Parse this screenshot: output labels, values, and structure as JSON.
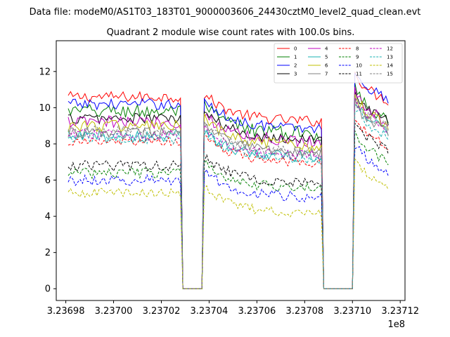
{
  "figure": {
    "supertitle": "Data file: modeM0/AS1T03_183T01_9000003606_24430cztM0_level2_quad_clean.evt"
  },
  "chart_data": {
    "type": "line",
    "title": "Quadrant 2 module wise count rates with 100.0s bins.",
    "xlabel": "",
    "ylabel": "",
    "x_offset_label": "1e8",
    "xlim": [
      3.236976,
      3.237122
    ],
    "ylim": [
      -0.65,
      13.7
    ],
    "x_ticks": [
      3.23698,
      3.237,
      3.23702,
      3.23704,
      3.23706,
      3.23708,
      3.2371,
      3.23712
    ],
    "x_tick_labels": [
      "3.23698",
      "3.23700",
      "3.23702",
      "3.23704",
      "3.23706",
      "3.23708",
      "3.23710",
      "3.23712"
    ],
    "y_ticks": [
      0,
      2,
      4,
      6,
      8,
      10,
      12
    ],
    "y_tick_labels": [
      "0",
      "2",
      "4",
      "6",
      "8",
      "10",
      "12"
    ],
    "grid": false,
    "legend_position": "top-right",
    "segments": [
      {
        "x_start": 3.236981,
        "x_end": 3.237028,
        "amp": 0.6,
        "decay": 0.0
      },
      {
        "x_start": 3.237038,
        "x_end": 3.237087,
        "amp": 1.5,
        "decay": 4.0
      },
      {
        "x_start": 3.237101,
        "x_end": 3.237115,
        "amp": 1.9,
        "decay": 1.6
      }
    ],
    "gap_x": [
      3.237029,
      3.237031,
      3.237034,
      3.237037,
      3.237088,
      3.237091,
      3.237094,
      3.237097,
      3.2371
    ],
    "series": [
      {
        "name": "0",
        "color": "#ff0000",
        "dash": "solid",
        "level": 10.0,
        "levels": [
          10.0,
          9.6,
          10.5
        ],
        "noise": 0.3
      },
      {
        "name": "1",
        "color": "#008000",
        "dash": "solid",
        "level": 9.2,
        "levels": [
          9.2,
          8.9,
          9.6
        ],
        "noise": 0.4
      },
      {
        "name": "2",
        "color": "#0000ff",
        "dash": "solid",
        "level": 9.6,
        "levels": [
          9.6,
          9.2,
          10.6
        ],
        "noise": 0.3
      },
      {
        "name": "3",
        "color": "#000000",
        "dash": "solid",
        "level": 8.8,
        "levels": [
          8.8,
          8.6,
          9.4
        ],
        "noise": 0.3
      },
      {
        "name": "4",
        "color": "#bf00bf",
        "dash": "solid",
        "level": 8.6,
        "levels": [
          8.6,
          8.5,
          9.4
        ],
        "noise": 0.35
      },
      {
        "name": "5",
        "color": "#1ab3b3",
        "dash": "solid",
        "level": 7.8,
        "levels": [
          7.8,
          7.6,
          8.9
        ],
        "noise": 0.35
      },
      {
        "name": "6",
        "color": "#bfbf00",
        "dash": "solid",
        "level": 8.4,
        "levels": [
          8.4,
          8.2,
          9.2
        ],
        "noise": 0.35
      },
      {
        "name": "7",
        "color": "#808080",
        "dash": "solid",
        "level": 8.0,
        "levels": [
          8.0,
          7.9,
          8.8
        ],
        "noise": 0.3
      },
      {
        "name": "8",
        "color": "#ff0000",
        "dash": "dashed",
        "level": 7.5,
        "levels": [
          7.5,
          7.3,
          8.0
        ],
        "noise": 0.25
      },
      {
        "name": "9",
        "color": "#008000",
        "dash": "dashed",
        "level": 5.8,
        "levels": [
          5.8,
          5.9,
          7.2
        ],
        "noise": 0.3
      },
      {
        "name": "10",
        "color": "#0000ff",
        "dash": "dashed",
        "level": 5.4,
        "levels": [
          5.4,
          5.4,
          6.6
        ],
        "noise": 0.3
      },
      {
        "name": "11",
        "color": "#000000",
        "dash": "dashed",
        "level": 6.2,
        "levels": [
          6.2,
          6.2,
          7.8
        ],
        "noise": 0.3
      },
      {
        "name": "12",
        "color": "#bf00bf",
        "dash": "dashed",
        "level": 7.9,
        "levels": [
          7.9,
          7.7,
          9.0
        ],
        "noise": 0.3
      },
      {
        "name": "13",
        "color": "#1ab3b3",
        "dash": "dashed",
        "level": 7.7,
        "levels": [
          7.7,
          7.5,
          8.6
        ],
        "noise": 0.3
      },
      {
        "name": "14",
        "color": "#bfbf00",
        "dash": "dashed",
        "level": 4.7,
        "levels": [
          4.7,
          4.5,
          5.8
        ],
        "noise": 0.25
      },
      {
        "name": "15",
        "color": "#808080",
        "dash": "dashed",
        "level": 8.1,
        "levels": [
          8.1,
          7.9,
          9.1
        ],
        "noise": 0.3
      }
    ]
  }
}
